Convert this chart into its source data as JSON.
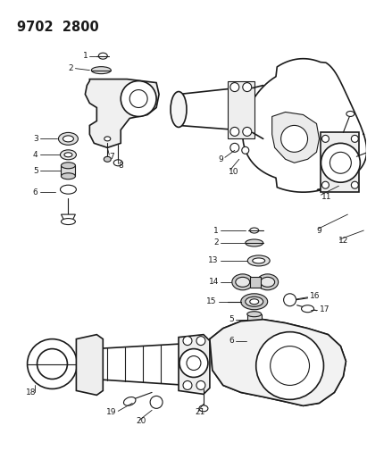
{
  "title": "9702  2800",
  "bg_color": "#ffffff",
  "line_color": "#1a1a1a",
  "text_color": "#1a1a1a",
  "label_fontsize": 6.5,
  "title_fontsize": 10.5
}
